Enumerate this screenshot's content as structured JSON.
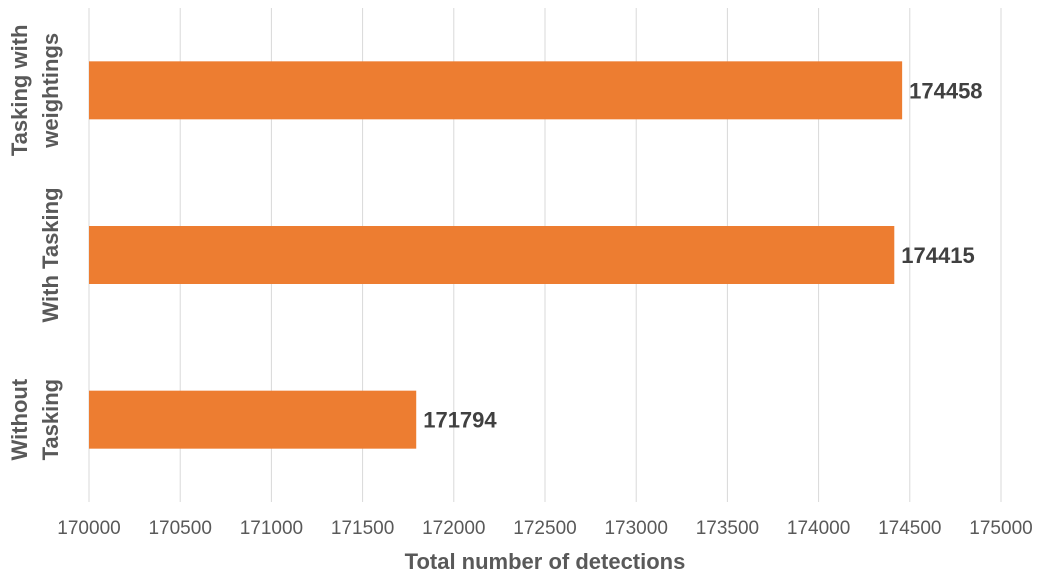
{
  "chart_data": {
    "type": "bar",
    "orientation": "horizontal",
    "categories": [
      "Without Tasking",
      "With Tasking",
      "Tasking with weightings"
    ],
    "category_lines": [
      [
        "Without",
        "Tasking"
      ],
      [
        "With Tasking"
      ],
      [
        "Tasking with",
        "weightings"
      ]
    ],
    "values": [
      171794,
      174415,
      174458
    ],
    "data_labels": [
      "171794",
      "174415",
      "174458"
    ],
    "xlabel": "Total number of detections",
    "ylabel": "",
    "xlim": [
      170000,
      175000
    ],
    "x_ticks": [
      170000,
      170500,
      171000,
      171500,
      172000,
      172500,
      173000,
      173500,
      174000,
      174500,
      175000
    ],
    "x_tick_labels": [
      "170000",
      "170500",
      "171000",
      "171500",
      "172000",
      "172500",
      "173000",
      "173500",
      "174000",
      "174500",
      "175000"
    ],
    "grid": true,
    "legend": "none",
    "colors": {
      "bar": "#ED7D31",
      "grid": "#D9D9D9",
      "text": "#595959",
      "data_label": "#404040"
    }
  }
}
